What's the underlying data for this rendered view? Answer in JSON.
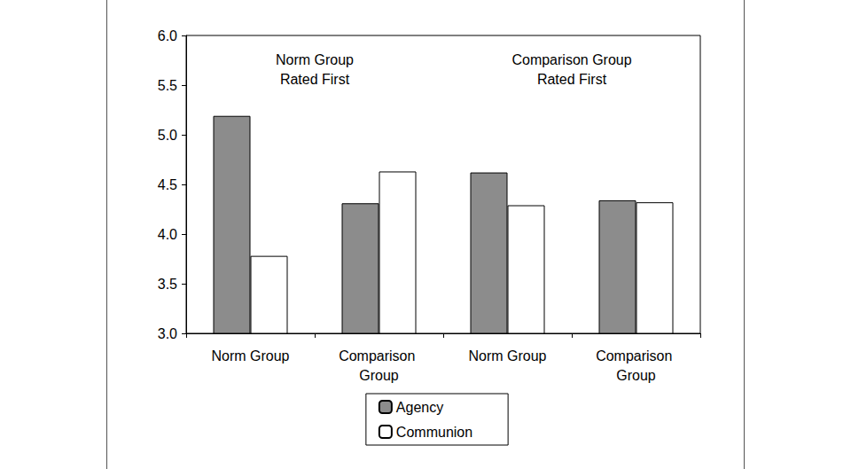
{
  "chart_data": {
    "type": "bar",
    "categories": [
      "Norm Group",
      "Comparison Group",
      "Norm Group",
      "Comparison Group"
    ],
    "series": [
      {
        "name": "Agency",
        "color": "#8c8c8c",
        "values": [
          5.19,
          4.31,
          4.62,
          4.34
        ]
      },
      {
        "name": "Communion",
        "color": "#ffffff",
        "values": [
          3.78,
          4.63,
          4.29,
          4.32
        ]
      }
    ],
    "annotations": [
      "Norm Group\nRated First",
      "Comparison Group\nRated First"
    ],
    "ylim": [
      3,
      6
    ],
    "yticks": [
      {
        "value": 3,
        "label": "3.0"
      },
      3.5,
      {
        "value": 4,
        "label": "4.0"
      },
      4.5,
      {
        "value": 5,
        "label": "5.0"
      },
      5.5,
      {
        "value": 6,
        "label": "6.0"
      }
    ],
    "grid": false,
    "legend": "bottom"
  }
}
